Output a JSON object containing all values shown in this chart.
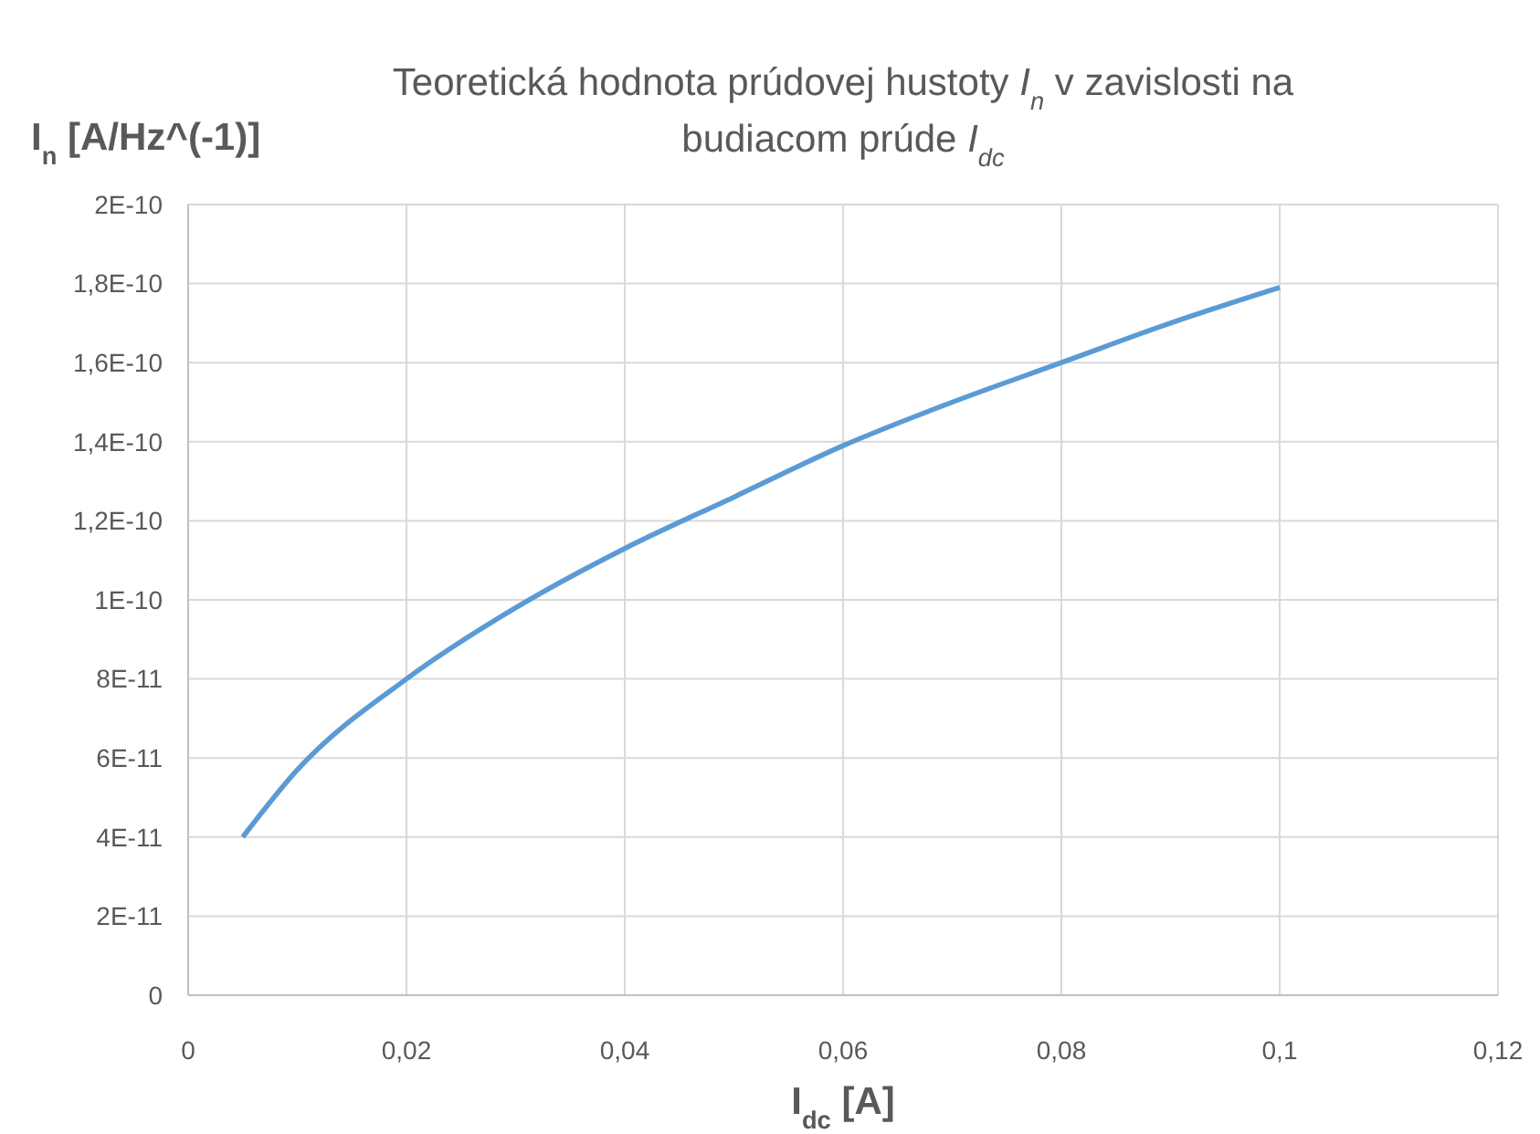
{
  "chart_data": {
    "type": "line",
    "title": "Teoretická hodnota prúdovej hustoty I$_{n}$ v zavislosti na budiacom prúde I$_{dc}$",
    "xlabel": "I$_{dc}$ [A]",
    "ylabel": "I$_{n}$ [A/Hz^(-1)]",
    "x": [
      0.005,
      0.01,
      0.02,
      0.03,
      0.04,
      0.05,
      0.06,
      0.07,
      0.08,
      0.09,
      0.1
    ],
    "series": [
      {
        "color": "#5b9bd5",
        "values": [
          4e-11,
          5.7e-11,
          8e-11,
          9.8e-11,
          1.13e-10,
          1.26e-10,
          1.39e-10,
          1.5e-10,
          1.6e-10,
          1.7e-10,
          1.79e-10
        ]
      }
    ],
    "xlim": [
      0,
      0.12
    ],
    "xticks": [
      0,
      {
        "value": 0.02,
        "label": "0,02"
      },
      {
        "value": 0.04,
        "label": "0,04"
      },
      {
        "value": 0.06,
        "label": "0,06"
      },
      {
        "value": 0.08,
        "label": "0,08"
      },
      {
        "value": 0.1,
        "label": "0,1"
      },
      {
        "value": 0.12,
        "label": "0,12"
      }
    ],
    "ylim": [
      0,
      2e-10
    ],
    "yticks": [
      0,
      {
        "value": 2e-11,
        "label": "2E-11"
      },
      {
        "value": 4e-11,
        "label": "4E-11"
      },
      {
        "value": 6e-11,
        "label": "6E-11"
      },
      {
        "value": 8e-11,
        "label": "8E-11"
      },
      {
        "value": 1e-10,
        "label": "1E-10"
      },
      {
        "value": 1.2e-10,
        "label": "1,2E-10"
      },
      {
        "value": 1.4e-10,
        "label": "1,4E-10"
      },
      {
        "value": 1.6e-10,
        "label": "1,6E-10"
      },
      {
        "value": 1.8e-10,
        "label": "1,8E-10"
      },
      {
        "value": 2e-10,
        "label": "2E-10"
      }
    ],
    "grid": true,
    "line_style": "solid"
  }
}
